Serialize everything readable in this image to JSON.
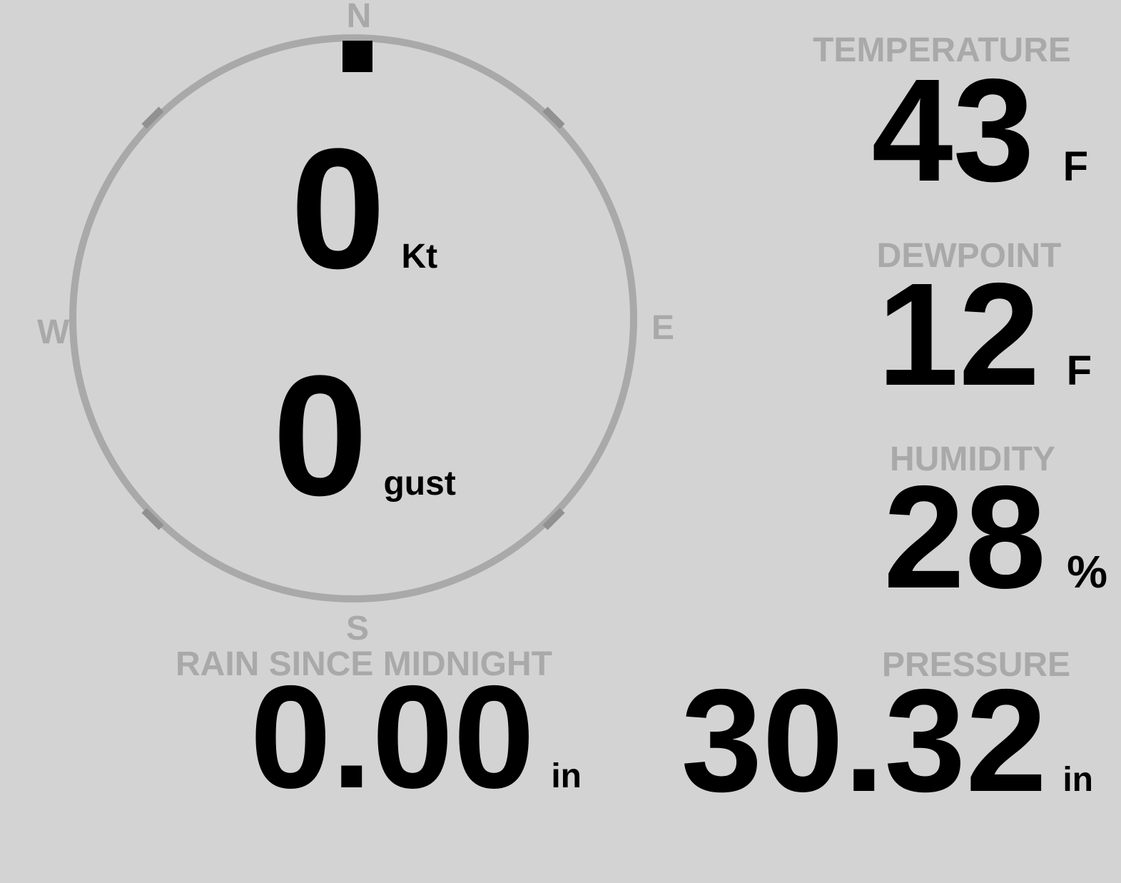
{
  "colors": {
    "background": "#d3d3d3",
    "muted": "#a9a9a9",
    "value": "#000000",
    "tick": "#919191",
    "marker": "#000000"
  },
  "compass": {
    "north": "N",
    "east": "E",
    "south": "S",
    "west": "W",
    "speed": {
      "value": "0",
      "unit": "Kt"
    },
    "gust": {
      "value": "0",
      "unit": "gust"
    }
  },
  "metrics": {
    "temperature": {
      "label": "TEMPERATURE",
      "value": "43",
      "unit": "F"
    },
    "dewpoint": {
      "label": "DEWPOINT",
      "value": "12",
      "unit": "F"
    },
    "humidity": {
      "label": "HUMIDITY",
      "value": "28",
      "unit": "%"
    },
    "rain_since_midnight": {
      "label": "RAIN SINCE MIDNIGHT",
      "value": "0.00",
      "unit": "in"
    },
    "pressure": {
      "label": "PRESSURE",
      "value": "30.32",
      "unit": "in"
    }
  }
}
